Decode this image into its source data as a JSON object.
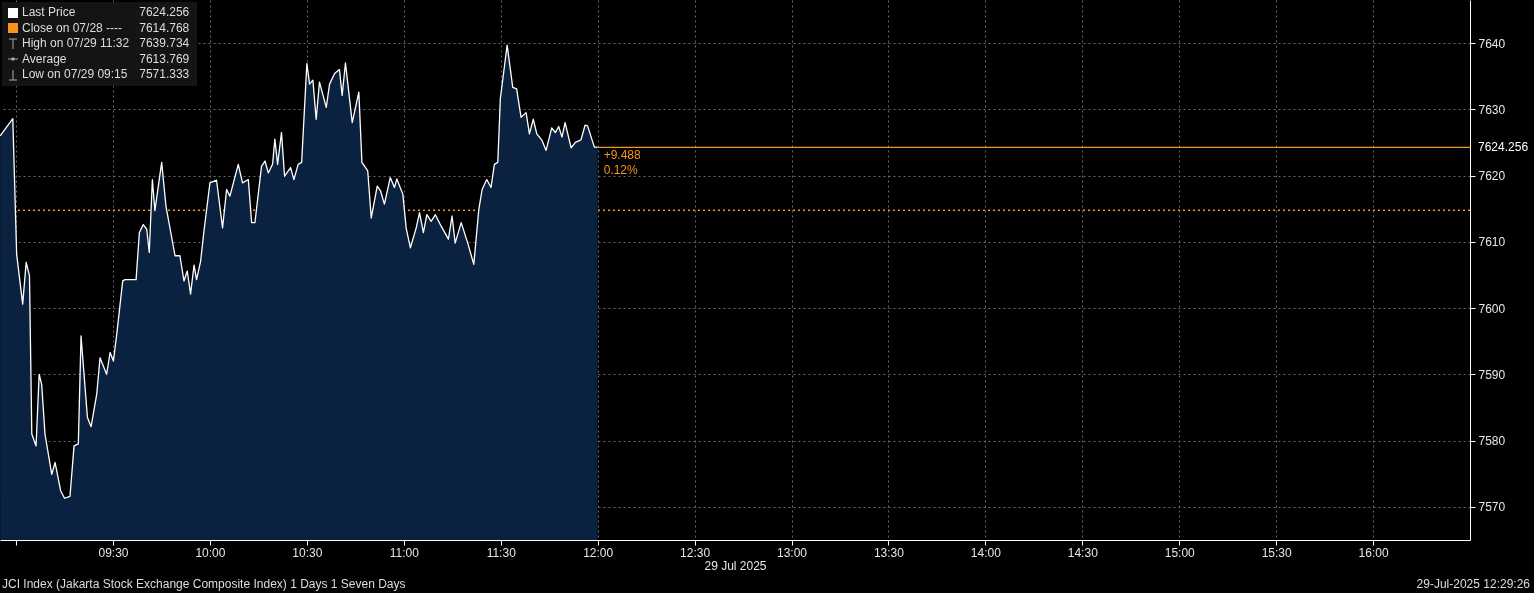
{
  "chart_data": {
    "type": "area",
    "xlabel": "29 Jul 2025",
    "xlim": [
      8.917,
      16.5
    ],
    "xticks": [
      {
        "value": 9.0,
        "label": null
      },
      {
        "value": 9.5,
        "label": "09:30"
      },
      {
        "value": 10.0,
        "label": "10:00"
      },
      {
        "value": 10.5,
        "label": "10:30"
      },
      {
        "value": 11.0,
        "label": "11:00"
      },
      {
        "value": 11.5,
        "label": "11:30"
      },
      {
        "value": 12.0,
        "label": "12:00"
      },
      {
        "value": 12.5,
        "label": "12:30"
      },
      {
        "value": 13.0,
        "label": "13:00"
      },
      {
        "value": 13.5,
        "label": "13:30"
      },
      {
        "value": 14.0,
        "label": "14:00"
      },
      {
        "value": 14.5,
        "label": "14:30"
      },
      {
        "value": 15.0,
        "label": "15:00"
      },
      {
        "value": 15.5,
        "label": "15:30"
      },
      {
        "value": 16.0,
        "label": "16:00"
      }
    ],
    "ylim": [
      7565,
      7646.5
    ],
    "yticks": [
      7570,
      7580,
      7590,
      7600,
      7610,
      7620,
      7630,
      7640
    ],
    "grid": true,
    "legend": "top left",
    "marker": "none",
    "series": [
      {
        "name": "Last Price",
        "color": "#ffffff",
        "x": [
          8.918,
          8.983,
          8.995,
          9.003,
          9.034,
          9.052,
          9.069,
          9.081,
          9.103,
          9.119,
          9.132,
          9.149,
          9.184,
          9.201,
          9.23,
          9.25,
          9.278,
          9.299,
          9.321,
          9.335,
          9.368,
          9.387,
          9.416,
          9.433,
          9.467,
          9.485,
          9.502,
          9.519,
          9.55,
          9.562,
          9.619,
          9.636,
          9.656,
          9.674,
          9.687,
          9.703,
          9.716,
          9.751,
          9.773,
          9.82,
          9.845,
          9.866,
          9.883,
          9.9,
          9.918,
          9.931,
          9.952,
          9.969,
          10.0,
          10.034,
          10.065,
          10.086,
          10.103,
          10.146,
          10.168,
          10.198,
          10.215,
          10.232,
          10.266,
          10.284,
          10.301,
          10.323,
          10.335,
          10.349,
          10.369,
          10.385,
          10.416,
          10.433,
          10.455,
          10.473,
          10.5,
          10.514,
          10.531,
          10.548,
          10.565,
          10.6,
          10.617,
          10.643,
          10.668,
          10.682,
          10.699,
          10.734,
          10.768,
          10.784,
          10.814,
          10.832,
          10.863,
          10.88,
          10.9,
          10.93,
          10.952,
          10.964,
          10.995,
          11.012,
          11.034,
          11.064,
          11.081,
          11.101,
          11.119,
          11.141,
          11.163,
          11.192,
          11.23,
          11.249,
          11.265,
          11.296,
          11.33,
          11.361,
          11.387,
          11.404,
          11.428,
          11.45,
          11.467,
          11.485,
          11.498,
          11.533,
          11.562,
          11.582,
          11.605,
          11.631,
          11.648,
          11.668,
          11.686,
          11.713,
          11.734,
          11.763,
          11.782,
          11.799,
          11.816,
          11.832,
          11.863,
          11.885,
          11.914,
          11.935,
          11.948,
          11.983,
          12.0
        ],
        "values": [
          7626.0,
          7628.6,
          7616.2,
          7608.1,
          7600.6,
          7606.9,
          7604.9,
          7581.0,
          7579.2,
          7590.0,
          7588.5,
          7581.0,
          7574.9,
          7576.7,
          7572.4,
          7571.3,
          7571.6,
          7579.2,
          7579.5,
          7595.8,
          7583.5,
          7582.1,
          7587.0,
          7592.5,
          7590.0,
          7593.3,
          7592.0,
          7596.0,
          7604.1,
          7604.3,
          7604.3,
          7611.4,
          7612.6,
          7611.9,
          7608.4,
          7619.4,
          7614.7,
          7622.0,
          7615.4,
          7607.9,
          7607.9,
          7604.1,
          7605.6,
          7602.1,
          7606.5,
          7604.3,
          7607.1,
          7611.6,
          7618.9,
          7619.3,
          7612.1,
          7617.9,
          7616.9,
          7621.7,
          7618.9,
          7619.4,
          7612.9,
          7612.9,
          7621.4,
          7622.2,
          7620.4,
          7621.7,
          7625.5,
          7621.7,
          7626.5,
          7619.9,
          7621.2,
          7619.4,
          7621.7,
          7622.0,
          7636.9,
          7633.8,
          7634.4,
          7628.5,
          7634.1,
          7630.3,
          7633.8,
          7635.4,
          7636.0,
          7632.1,
          7637.0,
          7628.0,
          7632.6,
          7622.0,
          7620.7,
          7613.6,
          7618.4,
          7617.7,
          7615.7,
          7619.7,
          7618.2,
          7619.5,
          7617.2,
          7612.1,
          7609.1,
          7612.1,
          7614.4,
          7611.4,
          7614.1,
          7613.1,
          7614.1,
          7612.4,
          7610.4,
          7613.9,
          7609.8,
          7612.9,
          7609.8,
          7606.6,
          7614.9,
          7617.9,
          7619.4,
          7618.2,
          7621.7,
          7622.0,
          7631.6,
          7639.7,
          7633.3,
          7633.1,
          7628.8,
          7629.5,
          7626.3,
          7628.5,
          7626.3,
          7625.3,
          7623.8,
          7627.2,
          7626.5,
          7627.4,
          7625.8,
          7628.0,
          7624.2,
          7625.0,
          7625.4,
          7627.6,
          7627.5,
          7624.3,
          7624.3
        ]
      },
      {
        "type": "line",
        "color": "#f7941d",
        "x": [
          12.0,
          16.5
        ],
        "values": [
          7624.256,
          7624.256
        ],
        "value_labels": [
          null,
          "7624.256"
        ]
      }
    ],
    "ref_lines": [
      {
        "axis": "y",
        "value": 7614.768,
        "label": "Close on 07/28 ---- 7614.768",
        "color": "#f7941d",
        "line_style": "dotted"
      }
    ],
    "annotations": [
      "High on 07/29 11:32 7639.734",
      "Average 7613.769",
      "Low on 07/29 09:15 7571.333",
      {
        "text": "+9.488",
        "x": 12.0,
        "y": 7624.256
      },
      {
        "text": "0.12%",
        "x": 12.0,
        "y": 7624.256
      },
      "JCI Index (Jakarta Stock Exchange Composite Index) 1 Days 1 Seven Days",
      "29-Jul-2025 12:29:26"
    ]
  }
}
